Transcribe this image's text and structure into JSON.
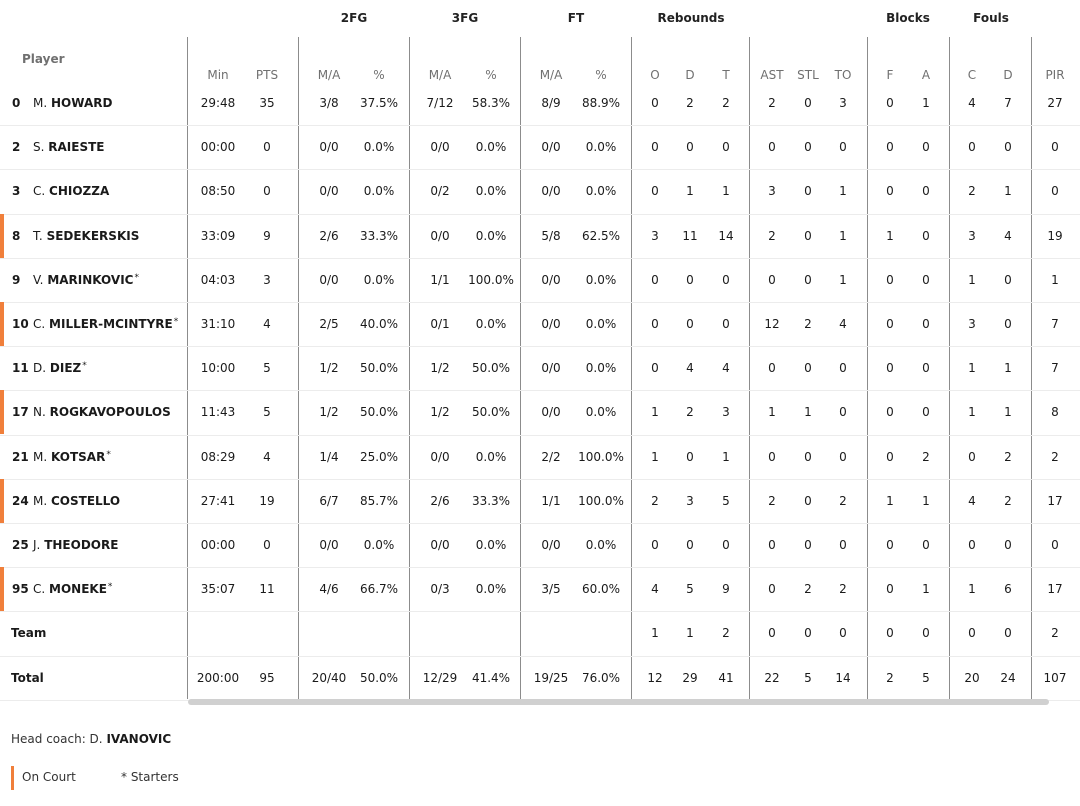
{
  "groups": [
    {
      "label": "2FG",
      "cx": 354
    },
    {
      "label": "3FG",
      "cx": 465
    },
    {
      "label": "FT",
      "cx": 576
    },
    {
      "label": "Rebounds",
      "cx": 691
    },
    {
      "label": "Blocks",
      "cx": 908
    },
    {
      "label": "Fouls",
      "cx": 991
    }
  ],
  "player_header": "Player",
  "columns": [
    {
      "key": "min",
      "label": "Min"
    },
    {
      "key": "pts",
      "label": "PTS"
    },
    {
      "key": "fg2ma",
      "label": "M/A"
    },
    {
      "key": "fg2p",
      "label": "%"
    },
    {
      "key": "fg3ma",
      "label": "M/A"
    },
    {
      "key": "fg3p",
      "label": "%"
    },
    {
      "key": "ftma",
      "label": "M/A"
    },
    {
      "key": "ftp",
      "label": "%"
    },
    {
      "key": "ro",
      "label": "O"
    },
    {
      "key": "rd",
      "label": "D"
    },
    {
      "key": "rt",
      "label": "T"
    },
    {
      "key": "ast",
      "label": "AST"
    },
    {
      "key": "stl",
      "label": "STL"
    },
    {
      "key": "to",
      "label": "TO"
    },
    {
      "key": "bf",
      "label": "F"
    },
    {
      "key": "ba",
      "label": "A"
    },
    {
      "key": "fc",
      "label": "C"
    },
    {
      "key": "fd",
      "label": "D"
    },
    {
      "key": "pir",
      "label": "PIR"
    }
  ],
  "players": [
    {
      "num": "0",
      "first": "M.",
      "last": "HOWARD",
      "starter": false,
      "oncourt": false,
      "stats": [
        "29:48",
        "35",
        "3/8",
        "37.5%",
        "7/12",
        "58.3%",
        "8/9",
        "88.9%",
        "0",
        "2",
        "2",
        "2",
        "0",
        "3",
        "0",
        "1",
        "4",
        "7",
        "27"
      ]
    },
    {
      "num": "2",
      "first": "S.",
      "last": "RAIESTE",
      "starter": false,
      "oncourt": false,
      "stats": [
        "00:00",
        "0",
        "0/0",
        "0.0%",
        "0/0",
        "0.0%",
        "0/0",
        "0.0%",
        "0",
        "0",
        "0",
        "0",
        "0",
        "0",
        "0",
        "0",
        "0",
        "0",
        "0"
      ]
    },
    {
      "num": "3",
      "first": "C.",
      "last": "CHIOZZA",
      "starter": false,
      "oncourt": false,
      "stats": [
        "08:50",
        "0",
        "0/0",
        "0.0%",
        "0/2",
        "0.0%",
        "0/0",
        "0.0%",
        "0",
        "1",
        "1",
        "3",
        "0",
        "1",
        "0",
        "0",
        "2",
        "1",
        "0"
      ]
    },
    {
      "num": "8",
      "first": "T.",
      "last": "SEDEKERSKIS",
      "starter": false,
      "oncourt": true,
      "stats": [
        "33:09",
        "9",
        "2/6",
        "33.3%",
        "0/0",
        "0.0%",
        "5/8",
        "62.5%",
        "3",
        "11",
        "14",
        "2",
        "0",
        "1",
        "1",
        "0",
        "3",
        "4",
        "19"
      ]
    },
    {
      "num": "9",
      "first": "V.",
      "last": "MARINKOVIC",
      "starter": true,
      "oncourt": false,
      "stats": [
        "04:03",
        "3",
        "0/0",
        "0.0%",
        "1/1",
        "100.0%",
        "0/0",
        "0.0%",
        "0",
        "0",
        "0",
        "0",
        "0",
        "1",
        "0",
        "0",
        "1",
        "0",
        "1"
      ]
    },
    {
      "num": "10",
      "first": "C.",
      "last": "MILLER-MCINTYRE",
      "starter": true,
      "oncourt": true,
      "stats": [
        "31:10",
        "4",
        "2/5",
        "40.0%",
        "0/1",
        "0.0%",
        "0/0",
        "0.0%",
        "0",
        "0",
        "0",
        "12",
        "2",
        "4",
        "0",
        "0",
        "3",
        "0",
        "7"
      ]
    },
    {
      "num": "11",
      "first": "D.",
      "last": "DIEZ",
      "starter": true,
      "oncourt": false,
      "stats": [
        "10:00",
        "5",
        "1/2",
        "50.0%",
        "1/2",
        "50.0%",
        "0/0",
        "0.0%",
        "0",
        "4",
        "4",
        "0",
        "0",
        "0",
        "0",
        "0",
        "1",
        "1",
        "7"
      ]
    },
    {
      "num": "17",
      "first": "N.",
      "last": "ROGKAVOPOULOS",
      "starter": false,
      "oncourt": true,
      "stats": [
        "11:43",
        "5",
        "1/2",
        "50.0%",
        "1/2",
        "50.0%",
        "0/0",
        "0.0%",
        "1",
        "2",
        "3",
        "1",
        "1",
        "0",
        "0",
        "0",
        "1",
        "1",
        "8"
      ]
    },
    {
      "num": "21",
      "first": "M.",
      "last": "KOTSAR",
      "starter": true,
      "oncourt": false,
      "stats": [
        "08:29",
        "4",
        "1/4",
        "25.0%",
        "0/0",
        "0.0%",
        "2/2",
        "100.0%",
        "1",
        "0",
        "1",
        "0",
        "0",
        "0",
        "0",
        "2",
        "0",
        "2",
        "2"
      ]
    },
    {
      "num": "24",
      "first": "M.",
      "last": "COSTELLO",
      "starter": false,
      "oncourt": true,
      "stats": [
        "27:41",
        "19",
        "6/7",
        "85.7%",
        "2/6",
        "33.3%",
        "1/1",
        "100.0%",
        "2",
        "3",
        "5",
        "2",
        "0",
        "2",
        "1",
        "1",
        "4",
        "2",
        "17"
      ]
    },
    {
      "num": "25",
      "first": "J.",
      "last": "THEODORE",
      "starter": false,
      "oncourt": false,
      "stats": [
        "00:00",
        "0",
        "0/0",
        "0.0%",
        "0/0",
        "0.0%",
        "0/0",
        "0.0%",
        "0",
        "0",
        "0",
        "0",
        "0",
        "0",
        "0",
        "0",
        "0",
        "0",
        "0"
      ]
    },
    {
      "num": "95",
      "first": "C.",
      "last": "MONEKE",
      "starter": true,
      "oncourt": true,
      "stats": [
        "35:07",
        "11",
        "4/6",
        "66.7%",
        "0/3",
        "0.0%",
        "3/5",
        "60.0%",
        "4",
        "5",
        "9",
        "0",
        "2",
        "2",
        "0",
        "1",
        "1",
        "6",
        "17"
      ]
    }
  ],
  "team_row": {
    "label": "Team",
    "stats": [
      "",
      "",
      "",
      "",
      "",
      "",
      "",
      "",
      "1",
      "1",
      "2",
      "0",
      "0",
      "0",
      "0",
      "0",
      "0",
      "0",
      "2"
    ]
  },
  "total_row": {
    "label": "Total",
    "stats": [
      "200:00",
      "95",
      "20/40",
      "50.0%",
      "12/29",
      "41.4%",
      "19/25",
      "76.0%",
      "12",
      "29",
      "41",
      "22",
      "5",
      "14",
      "2",
      "5",
      "20",
      "24",
      "107"
    ]
  },
  "starter_mark": "*",
  "coach": {
    "prefix": "Head coach: D.",
    "last": "IVANOVIC"
  },
  "legend": {
    "oncourt": "On Court",
    "starters": "* Starters"
  },
  "colors": {
    "oncourt": "#f07f3b"
  }
}
